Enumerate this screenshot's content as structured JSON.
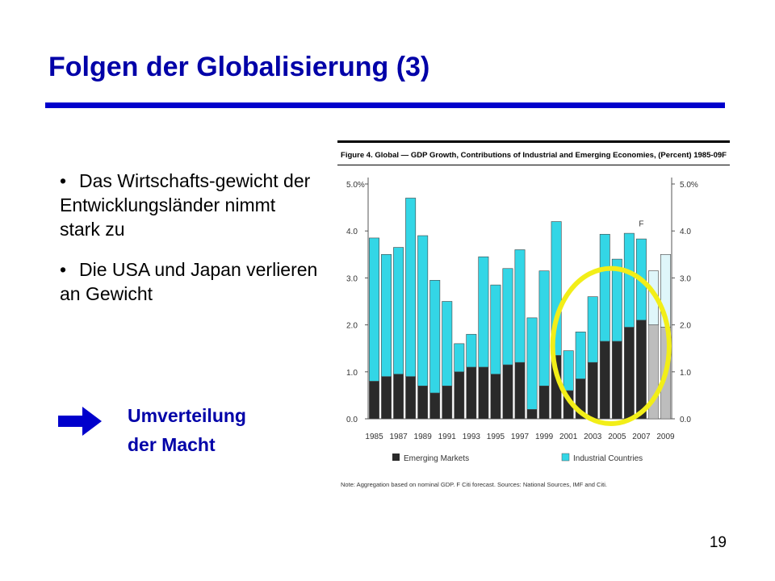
{
  "slide": {
    "title": "Folgen der Globalisierung (3)",
    "bullets": [
      "Das Wirtschafts-gewicht der Entwicklungsländer nimmt stark zu",
      "Die USA und Japan verlieren an Gewicht"
    ],
    "bullet_symbol": "•",
    "conclusion_line1": "Umverteilung",
    "conclusion_line2": "der Macht",
    "page_number": "19"
  },
  "colors": {
    "title": "#0000A8",
    "rule": "#0000CC",
    "emerging": "#2a2a2a",
    "industrial": "#33D6E6",
    "forecast_emerging": "#bdbdbd",
    "forecast_industrial": "#dff6fa",
    "highlight": "#F2EE18"
  },
  "chart_data": {
    "type": "bar",
    "stacked": true,
    "title": "Figure 4. Global — GDP Growth, Contributions of Industrial and Emerging Economies, (Percent) 1985-09F",
    "x": [
      1985,
      1986,
      1987,
      1988,
      1989,
      1990,
      1991,
      1992,
      1993,
      1994,
      1995,
      1996,
      1997,
      1998,
      1999,
      2000,
      2001,
      2002,
      2003,
      2004,
      2005,
      2006,
      2007,
      2008,
      2009
    ],
    "x_tick_labels": [
      "1985",
      "1987",
      "1989",
      "1991",
      "1993",
      "1995",
      "1997",
      "1999",
      "2001",
      "2003",
      "2005",
      "2007",
      "2009"
    ],
    "series": [
      {
        "name": "Emerging Markets",
        "values": [
          0.8,
          0.9,
          0.95,
          0.9,
          0.7,
          0.55,
          0.7,
          1.0,
          1.1,
          1.1,
          0.95,
          1.15,
          1.2,
          0.2,
          0.7,
          1.35,
          0.6,
          0.85,
          1.2,
          1.65,
          1.65,
          1.95,
          2.1,
          2.0,
          1.95
        ]
      },
      {
        "name": "Industrial Countries",
        "values": [
          3.05,
          2.6,
          2.7,
          3.8,
          3.2,
          2.4,
          1.8,
          0.6,
          0.7,
          2.35,
          1.9,
          2.05,
          2.4,
          1.95,
          2.45,
          2.85,
          0.85,
          1.0,
          1.4,
          2.28,
          1.75,
          2.0,
          1.73,
          1.15,
          1.55
        ]
      }
    ],
    "forecast_from": 2008,
    "forecast_label": "F",
    "y_left_ticks": [
      "0.0",
      "1.0",
      "2.0",
      "3.0",
      "4.0",
      "5.0%"
    ],
    "y_right_ticks": [
      "0.0",
      "1.0",
      "2.0",
      "3.0",
      "4.0",
      "5.0%"
    ],
    "ylim": [
      0,
      5
    ],
    "legend": [
      "Emerging Markets",
      "Industrial Countries"
    ],
    "legend_position": "bottom",
    "note": "Note: Aggregation based on nominal GDP. F Citi forecast. Sources: National Sources, IMF and Citi.",
    "annotation": "yellow circle around 2001-2008"
  }
}
